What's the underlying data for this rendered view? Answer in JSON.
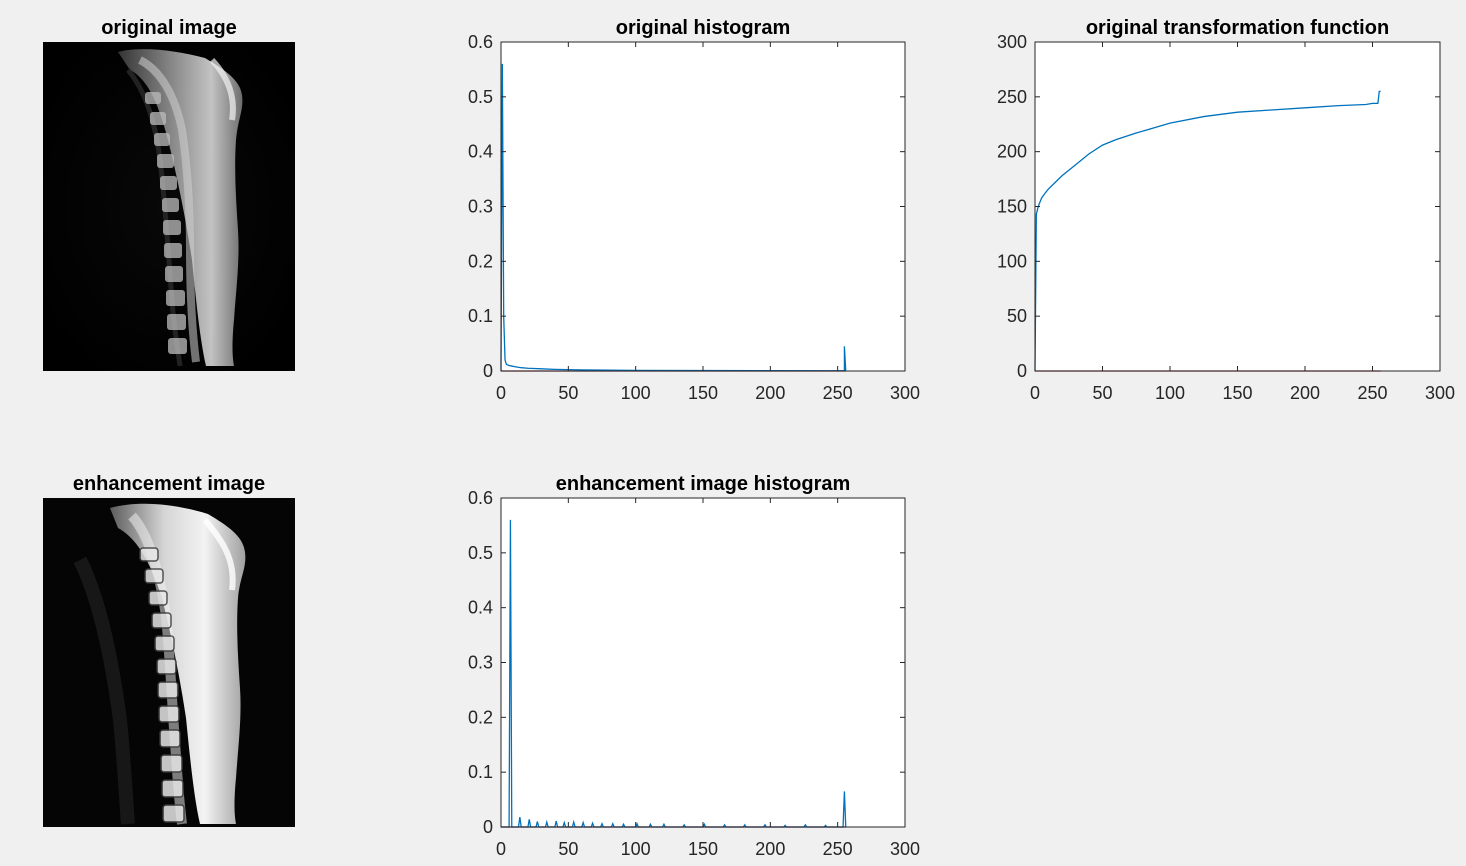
{
  "window": {
    "background": "#f0f0f0",
    "axes_background": "#ffffff",
    "series_color": "#0072bd",
    "baseline_color": "#a2142f"
  },
  "images": [
    {
      "title": "original image",
      "content": "sagittal spine MRI scan (grayscale)"
    },
    {
      "title": "enhancement image",
      "content": "histogram-equalized sagittal spine MRI scan (grayscale)"
    }
  ],
  "chart_data": [
    {
      "id": "original-histogram",
      "type": "line",
      "title": "original histogram",
      "xlabel": "",
      "ylabel": "",
      "xlim": [
        0,
        300
      ],
      "ylim": [
        0,
        0.6
      ],
      "xticks": [
        0,
        50,
        100,
        150,
        200,
        250,
        300
      ],
      "yticks": [
        0,
        0.1,
        0.2,
        0.3,
        0.4,
        0.5,
        0.6
      ],
      "grid": false,
      "series": [
        {
          "x": [
            0,
            1,
            2,
            3,
            4,
            6,
            8,
            10,
            15,
            20,
            30,
            40,
            60,
            80,
            100,
            150,
            200,
            250,
            253,
            254,
            255,
            255,
            256
          ],
          "y": [
            0,
            0.56,
            0.1,
            0.02,
            0.012,
            0.01,
            0.009,
            0.008,
            0.006,
            0.005,
            0.004,
            0.003,
            0.002,
            0.0015,
            0.001,
            0.0008,
            0.0006,
            0.0005,
            0.0005,
            0.0005,
            0.0005,
            0.045,
            0
          ]
        }
      ]
    },
    {
      "id": "original-transformation-function",
      "type": "line",
      "title": "original transformation function",
      "xlabel": "",
      "ylabel": "",
      "xlim": [
        0,
        300
      ],
      "ylim": [
        0,
        300
      ],
      "xticks": [
        0,
        50,
        100,
        150,
        200,
        250,
        300
      ],
      "yticks": [
        0,
        50,
        100,
        150,
        200,
        250,
        300
      ],
      "grid": false,
      "series": [
        {
          "x": [
            0,
            1,
            2,
            3,
            5,
            8,
            10,
            15,
            20,
            30,
            40,
            50,
            60,
            75,
            100,
            125,
            150,
            175,
            200,
            225,
            245,
            250,
            254,
            255,
            256
          ],
          "y": [
            0,
            143,
            148,
            152,
            158,
            163,
            166,
            172,
            178,
            188,
            198,
            206,
            211,
            217,
            226,
            232,
            236,
            238,
            240,
            242,
            243,
            244,
            244,
            255,
            255
          ]
        }
      ]
    },
    {
      "id": "enhancement-image-histogram",
      "type": "line",
      "title": "enhancement image histogram",
      "xlabel": "",
      "ylabel": "",
      "xlim": [
        0,
        300
      ],
      "ylim": [
        0,
        0.6
      ],
      "xticks": [
        0,
        50,
        100,
        150,
        200,
        250,
        300
      ],
      "yticks": [
        0,
        0.1,
        0.2,
        0.3,
        0.4,
        0.5,
        0.6
      ],
      "grid": false,
      "series": [
        {
          "x": [
            0,
            6,
            7,
            8,
            13,
            14,
            15,
            20,
            21,
            22,
            26,
            27,
            28,
            33,
            34,
            35,
            40,
            41,
            42,
            46,
            47,
            48,
            53,
            54,
            55,
            60,
            61,
            62,
            67,
            68,
            69,
            74,
            75,
            76,
            82,
            83,
            84,
            90,
            91,
            92,
            100,
            101,
            102,
            110,
            111,
            112,
            120,
            121,
            122,
            135,
            136,
            137,
            150,
            151,
            152,
            165,
            166,
            167,
            180,
            181,
            182,
            195,
            196,
            197,
            210,
            211,
            212,
            225,
            226,
            227,
            240,
            241,
            242,
            254,
            255,
            256
          ],
          "y": [
            0,
            0,
            0.56,
            0,
            0,
            0.018,
            0,
            0,
            0.014,
            0,
            0,
            0.01,
            0,
            0,
            0.009,
            0,
            0,
            0.011,
            0,
            0,
            0.008,
            0,
            0,
            0.009,
            0,
            0,
            0.008,
            0,
            0,
            0.007,
            0,
            0,
            0.006,
            0,
            0,
            0.006,
            0,
            0,
            0.005,
            0,
            0,
            0.006,
            0,
            0,
            0.005,
            0,
            0,
            0.005,
            0,
            0,
            0.004,
            0,
            0,
            0.005,
            0,
            0,
            0.004,
            0,
            0,
            0.004,
            0,
            0,
            0.004,
            0,
            0,
            0.003,
            0,
            0,
            0.004,
            0,
            0,
            0.003,
            0,
            0,
            0.065,
            0
          ]
        }
      ]
    }
  ]
}
